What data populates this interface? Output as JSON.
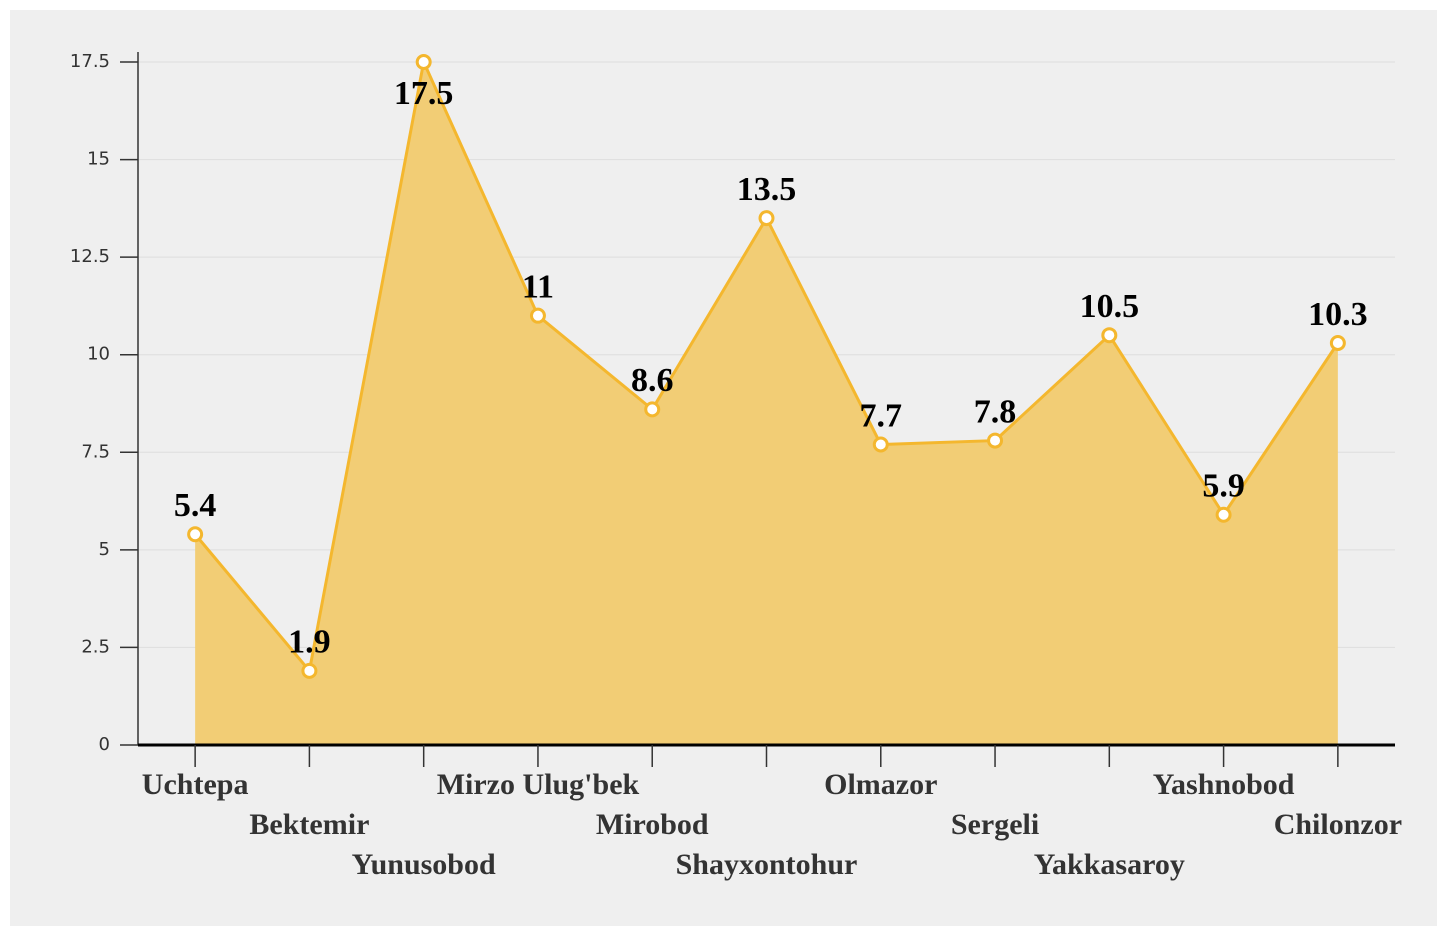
{
  "chart_data": {
    "type": "area",
    "categories": [
      "Uchtepa",
      "Bektemir",
      "Yunusobod",
      "Mirzo Ulug'bek",
      "Mirobod",
      "Shayxontohur",
      "Olmazor",
      "Sergeli",
      "Yakkasaroy",
      "Yashnobod",
      "Chilonzor"
    ],
    "values": [
      5.4,
      1.9,
      17.5,
      11,
      8.6,
      13.5,
      7.7,
      7.8,
      10.5,
      5.9,
      10.3
    ],
    "color": "#f4b72e",
    "fill": "#f2cd75",
    "ylim": [
      0,
      17.5
    ],
    "yticks": [
      0,
      2.5,
      5,
      7.5,
      10,
      12.5,
      15,
      17.5
    ],
    "grid": true
  }
}
